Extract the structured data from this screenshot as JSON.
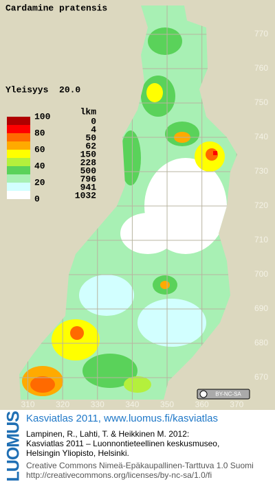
{
  "map": {
    "title": "Cardamine pratensis",
    "index_text": "Yleisyys  20.0",
    "xlim": [
      302,
      381
    ],
    "ylim": [
      661,
      780
    ],
    "xticks": [
      310,
      320,
      330,
      340,
      350,
      360,
      370
    ],
    "yticks": [
      670,
      680,
      690,
      700,
      710,
      720,
      730,
      740,
      750,
      760,
      770
    ],
    "legend": {
      "count_title": "lkm",
      "scale_labels": [
        100,
        80,
        60,
        40,
        20,
        0
      ],
      "classes": [
        {
          "color": "#b00000",
          "count": 0
        },
        {
          "color": "#ff0000",
          "count": 4
        },
        {
          "color": "#ff6a00",
          "count": 50
        },
        {
          "color": "#ffaa00",
          "count": 62
        },
        {
          "color": "#ffff00",
          "count": 150
        },
        {
          "color": "#b4f03c",
          "count": 228
        },
        {
          "color": "#5ad25a",
          "count": 500
        },
        {
          "color": "#a8f0b4",
          "count": 796
        },
        {
          "color": "#d2ffff",
          "count": 941
        },
        {
          "color": "#ffffff",
          "count": 1032
        }
      ]
    },
    "license_badge": "BY-NC-SA"
  },
  "footer": {
    "brand": "LUOMUS",
    "headline": "Kasviatlas 2011, www.luomus.fi/kasviatlas",
    "citation": [
      "Lampinen, R., Lahti, T. & Heikkinen M. 2012:",
      "Kasviatlas 2011 – Luonnontieteellinen keskusmuseo,",
      "Helsingin Yliopisto, Helsinki."
    ],
    "license": [
      "Creative Commons Nimeä-Epäkaupallinen-Tarttuva 1.0 Suomi",
      "http://creativecommons.org/licenses/by-nc-sa/1.0/fi"
    ]
  }
}
